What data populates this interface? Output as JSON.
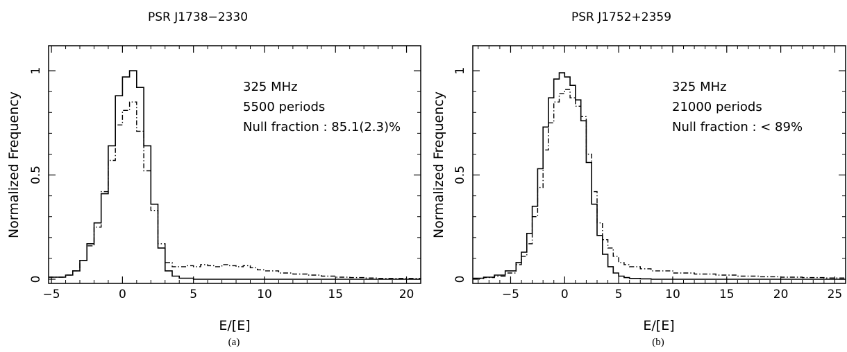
{
  "chart_data": [
    {
      "type": "histogram",
      "title": "PSR J1738−2330",
      "xlabel": "E/[E]",
      "ylabel": "Normalized Frequency",
      "caption": "(a)",
      "xlim": [
        -5.2,
        21
      ],
      "ylim": [
        -0.02,
        1.12
      ],
      "xticks": [
        -5,
        0,
        5,
        10,
        15,
        20
      ],
      "xtick_labels": [
        "−5",
        "0",
        "5",
        "10",
        "15",
        "20"
      ],
      "yticks": [
        0,
        0.5,
        1
      ],
      "ytick_labels": [
        "0",
        "0.5",
        "1"
      ],
      "annotations": [
        "325 MHz",
        "5500 periods",
        "Null fraction : 85.1(2.3)%"
      ],
      "series": [
        {
          "style": "solid",
          "x": [
            -5.2,
            -4.0,
            -3.5,
            -3.0,
            -2.5,
            -2.0,
            -1.5,
            -1.0,
            -0.5,
            0.0,
            0.5,
            1.0,
            1.5,
            2.0,
            2.5,
            3.0,
            3.5,
            4.0,
            5.0,
            21.0
          ],
          "y": [
            0.01,
            0.02,
            0.04,
            0.09,
            0.17,
            0.27,
            0.41,
            0.64,
            0.88,
            0.97,
            1.0,
            0.92,
            0.64,
            0.36,
            0.15,
            0.04,
            0.015,
            0.005,
            0.0,
            0.0
          ]
        },
        {
          "style": "dash-dot",
          "x": [
            -5.2,
            -4.0,
            -3.5,
            -3.0,
            -2.5,
            -2.0,
            -1.5,
            -1.0,
            -0.5,
            0.0,
            0.5,
            1.0,
            1.5,
            2.0,
            2.5,
            3.0,
            3.5,
            4.0,
            4.5,
            5.0,
            5.5,
            6.0,
            6.5,
            7.0,
            7.5,
            8.0,
            8.5,
            9.0,
            9.5,
            10.0,
            11.0,
            12.0,
            13.0,
            14.0,
            15.0,
            16.0,
            17.0,
            18.0,
            21.0
          ],
          "y": [
            0.01,
            0.02,
            0.04,
            0.09,
            0.16,
            0.25,
            0.42,
            0.57,
            0.74,
            0.81,
            0.85,
            0.71,
            0.52,
            0.33,
            0.17,
            0.08,
            0.06,
            0.06,
            0.065,
            0.06,
            0.07,
            0.065,
            0.06,
            0.07,
            0.065,
            0.06,
            0.065,
            0.055,
            0.045,
            0.04,
            0.03,
            0.025,
            0.02,
            0.015,
            0.01,
            0.008,
            0.006,
            0.004,
            0.003
          ]
        }
      ]
    },
    {
      "type": "histogram",
      "title": "PSR J1752+2359",
      "xlabel": "E/[E]",
      "ylabel": "Normalized Frequency",
      "caption": "(b)",
      "xlim": [
        -8.5,
        26
      ],
      "ylim": [
        -0.02,
        1.12
      ],
      "xticks": [
        -5,
        0,
        5,
        10,
        15,
        20,
        25
      ],
      "xtick_labels": [
        "−5",
        "0",
        "5",
        "10",
        "15",
        "20",
        "25"
      ],
      "yticks": [
        0,
        0.5,
        1
      ],
      "ytick_labels": [
        "0",
        "0.5",
        "1"
      ],
      "annotations": [
        "325 MHz",
        "21000 periods",
        "Null fraction : < 89%"
      ],
      "series": [
        {
          "style": "solid",
          "x": [
            -8.5,
            -7.5,
            -6.5,
            -5.5,
            -4.5,
            -4.0,
            -3.5,
            -3.0,
            -2.5,
            -2.0,
            -1.5,
            -1.0,
            -0.5,
            0.0,
            0.5,
            1.0,
            1.5,
            2.0,
            2.5,
            3.0,
            3.5,
            4.0,
            4.5,
            5.0,
            5.5,
            6.0,
            7.0,
            8.0,
            26.0
          ],
          "y": [
            0.005,
            0.01,
            0.02,
            0.04,
            0.08,
            0.13,
            0.22,
            0.35,
            0.53,
            0.73,
            0.87,
            0.96,
            0.99,
            0.97,
            0.93,
            0.86,
            0.76,
            0.56,
            0.36,
            0.21,
            0.12,
            0.06,
            0.03,
            0.015,
            0.008,
            0.004,
            0.002,
            0.0,
            0.0
          ]
        },
        {
          "style": "dash-dot",
          "x": [
            -8.5,
            -7.5,
            -6.5,
            -5.5,
            -4.5,
            -4.0,
            -3.5,
            -3.0,
            -2.5,
            -2.0,
            -1.5,
            -1.0,
            -0.5,
            0.0,
            0.5,
            1.0,
            1.5,
            2.0,
            2.5,
            3.0,
            3.5,
            4.0,
            4.5,
            5.0,
            5.5,
            6.0,
            7.0,
            8.0,
            10.0,
            12.0,
            14.0,
            16.0,
            18.0,
            20.0,
            22.0,
            24.0,
            26.0
          ],
          "y": [
            0.003,
            0.008,
            0.015,
            0.03,
            0.07,
            0.11,
            0.17,
            0.3,
            0.44,
            0.62,
            0.75,
            0.85,
            0.89,
            0.91,
            0.87,
            0.83,
            0.78,
            0.6,
            0.42,
            0.27,
            0.19,
            0.15,
            0.11,
            0.08,
            0.07,
            0.06,
            0.05,
            0.04,
            0.03,
            0.025,
            0.02,
            0.015,
            0.012,
            0.01,
            0.008,
            0.006,
            0.005
          ]
        }
      ]
    }
  ]
}
